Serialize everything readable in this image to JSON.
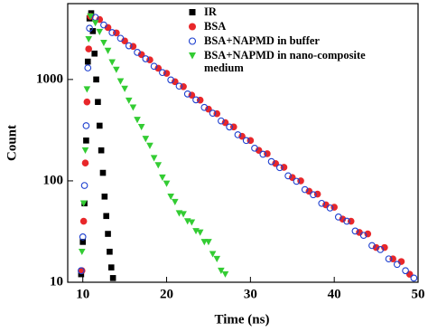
{
  "chart_data": {
    "type": "scatter",
    "x_label": "Time (ns)",
    "y_label": "Count",
    "xlim": [
      8.2,
      50
    ],
    "xticks": [
      10,
      20,
      30,
      40,
      50
    ],
    "ylim": [
      10,
      5600
    ],
    "yticks": [
      10,
      100,
      1000
    ],
    "y_scale": "log",
    "legend": "top",
    "series": [
      {
        "name": "IR",
        "color": "#000000",
        "marker": "square",
        "x": [
          9.8,
          10.0,
          10.2,
          10.4,
          10.6,
          10.8,
          11.0,
          11.2,
          11.4,
          11.6,
          11.8,
          12.0,
          12.2,
          12.4,
          12.6,
          12.8,
          13.0,
          13.2,
          13.4,
          13.6
        ],
        "values": [
          12,
          25,
          60,
          250,
          1500,
          4000,
          4500,
          3000,
          1800,
          1000,
          600,
          350,
          200,
          120,
          70,
          45,
          30,
          20,
          14,
          11
        ]
      },
      {
        "name": "BSA",
        "color": "#e8272a",
        "marker": "circle",
        "x": [
          9.9,
          10.1,
          10.3,
          10.5,
          10.7,
          10.9,
          12,
          13,
          14,
          15,
          16,
          17,
          18,
          19,
          20,
          21,
          22,
          23,
          24,
          25,
          26,
          27,
          28,
          29,
          30,
          31,
          32,
          33,
          34,
          35,
          36,
          37,
          38,
          39,
          40,
          41,
          42,
          43,
          44,
          45,
          46,
          47,
          48,
          49
        ],
        "values": [
          13,
          40,
          150,
          600,
          2000,
          4200,
          3900,
          3250,
          2880,
          2400,
          2120,
          1760,
          1560,
          1290,
          1150,
          950,
          850,
          700,
          625,
          510,
          460,
          375,
          340,
          275,
          250,
          200,
          185,
          148,
          136,
          108,
          100,
          79,
          74,
          58,
          55,
          42,
          40,
          31,
          30,
          22,
          22,
          17,
          16,
          12
        ]
      },
      {
        "name": "BSA+NAPMD in buffer",
        "color": "#1d3fcf",
        "marker": "open-circle",
        "x": [
          9.8,
          10.0,
          10.2,
          10.4,
          10.6,
          10.8,
          11.5,
          12.5,
          13.5,
          14.5,
          15.5,
          16.5,
          17.5,
          18.5,
          19.5,
          20.5,
          21.5,
          22.5,
          23.5,
          24.5,
          25.5,
          26.5,
          27.5,
          28.5,
          29.5,
          30.5,
          31.5,
          32.5,
          33.5,
          34.5,
          35.5,
          36.5,
          37.5,
          38.5,
          39.5,
          40.5,
          41.5,
          42.5,
          43.5,
          44.5,
          45.5,
          46.5,
          47.5,
          48.5,
          49.5
        ],
        "values": [
          13,
          28,
          90,
          350,
          1300,
          3200,
          4100,
          3450,
          2900,
          2550,
          2150,
          1850,
          1600,
          1350,
          1170,
          990,
          860,
          720,
          630,
          530,
          465,
          390,
          340,
          285,
          250,
          210,
          183,
          155,
          135,
          112,
          99,
          82,
          73,
          60,
          54,
          44,
          40,
          32,
          29,
          23,
          21,
          17,
          15,
          13,
          11
        ]
      },
      {
        "name": "BSA+NAPMD in nano-composite medium",
        "color": "#33cc33",
        "marker": "triangle",
        "x": [
          9.9,
          10.1,
          10.3,
          10.5,
          10.7,
          10.9,
          11.5,
          12.0,
          12.5,
          13.0,
          13.5,
          14.0,
          14.5,
          15.0,
          15.5,
          16.0,
          16.5,
          17.0,
          17.5,
          18.0,
          18.5,
          19.0,
          19.5,
          20.0,
          20.5,
          21.0,
          21.5,
          22.0,
          22.5,
          23.0,
          23.5,
          24.0,
          24.5,
          25.0,
          25.5,
          26.0,
          26.5,
          27.0
        ],
        "values": [
          20,
          60,
          200,
          800,
          2500,
          4200,
          3600,
          2950,
          2300,
          1920,
          1480,
          1250,
          960,
          810,
          620,
          530,
          400,
          340,
          260,
          222,
          168,
          143,
          108,
          94,
          70,
          62,
          48,
          47,
          40,
          39,
          32,
          31,
          25,
          25,
          19,
          17,
          13,
          12
        ]
      }
    ]
  }
}
